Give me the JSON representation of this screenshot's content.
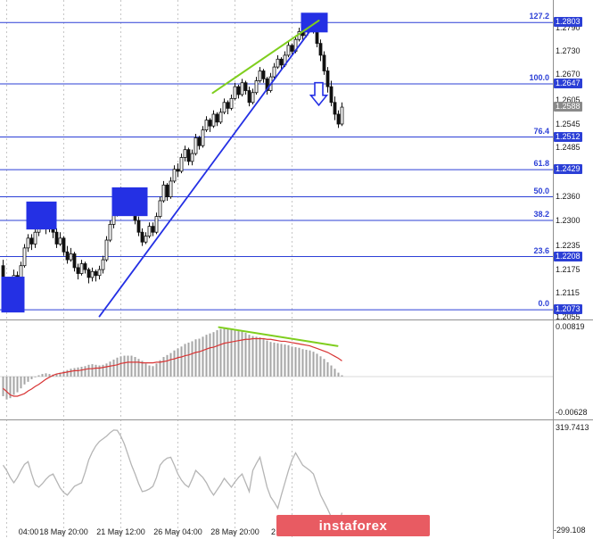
{
  "watermark": {
    "text": "instaforex",
    "bg_color": "#e85b62",
    "text_color": "#ffffff"
  },
  "colors": {
    "fib_line": "#2b3fd6",
    "fib_text": "#2b3fd6",
    "shape_blue": "#2430e4",
    "trend_green": "#7fce1e",
    "signal_red": "#d83434",
    "histogram_gray": "#a6a6a6",
    "oscillator_gray": "#b5b5b5",
    "grid_gray": "#c6c6c6",
    "separator_gray": "#909090",
    "candle_black": "#111111",
    "current_price_bg": "#8a8a8a"
  },
  "time_axis": {
    "labels": [
      {
        "text": "04:00",
        "candle": 1
      },
      {
        "text": "18 May 20:00",
        "candle": 17
      },
      {
        "text": "21 May 12:00",
        "candle": 33
      },
      {
        "text": "26 May 04:00",
        "candle": 49
      },
      {
        "text": "28 May 20:00",
        "candle": 65
      },
      {
        "text": "2 Jun 12:00",
        "candle": 81
      }
    ]
  },
  "price_axis": {
    "ticks": [
      "1.2790",
      "1.2730",
      "1.2670",
      "1.2605",
      "1.2545",
      "1.2485",
      "1.2360",
      "1.2300",
      "1.2235",
      "1.2175",
      "1.2115",
      "1.2055"
    ],
    "current_price": "1.2588"
  },
  "fibonacci": {
    "levels": [
      {
        "pct": "127.2",
        "price": "1.2803",
        "boxed": true
      },
      {
        "pct": "100.0",
        "price": "1.2647",
        "boxed": true
      },
      {
        "pct": "76.4",
        "price": "1.2512",
        "boxed": true
      },
      {
        "pct": "61.8",
        "price": "1.2429",
        "boxed": true
      },
      {
        "pct": "50.0",
        "price": "1.2360",
        "boxed": false
      },
      {
        "pct": "38.2",
        "price": "1.2300",
        "boxed": false
      },
      {
        "pct": "23.6",
        "price": "1.2208",
        "boxed": true
      },
      {
        "pct": "0.0",
        "price": "1.2073",
        "boxed": true
      }
    ]
  },
  "indicator_axes": {
    "macd_max": "0.00819",
    "macd_min": "-0.00628",
    "osc_max": "319.7413",
    "osc_min": "-299.108"
  },
  "chart_data": [
    {
      "type": "candlestick",
      "name": "price-panel",
      "current_price": 1.2588,
      "candles": [
        [
          1.2185,
          1.22,
          1.212,
          1.214
        ],
        [
          1.214,
          1.215,
          1.2075,
          1.209
        ],
        [
          1.209,
          1.2135,
          1.208,
          1.212
        ],
        [
          1.212,
          1.2175,
          1.211,
          1.216
        ],
        [
          1.216,
          1.217,
          1.213,
          1.215
        ],
        [
          1.215,
          1.2195,
          1.214,
          1.2185
        ],
        [
          1.2185,
          1.224,
          1.218,
          1.223
        ],
        [
          1.223,
          1.2265,
          1.222,
          1.2255
        ],
        [
          1.2255,
          1.2265,
          1.2225,
          1.224
        ],
        [
          1.224,
          1.228,
          1.223,
          1.227
        ],
        [
          1.227,
          1.2305,
          1.226,
          1.2295
        ],
        [
          1.2295,
          1.232,
          1.2285,
          1.2305
        ],
        [
          1.2305,
          1.231,
          1.2265,
          1.228
        ],
        [
          1.228,
          1.231,
          1.227,
          1.23
        ],
        [
          1.23,
          1.2305,
          1.2255,
          1.227
        ],
        [
          1.227,
          1.228,
          1.223,
          1.224
        ],
        [
          1.224,
          1.227,
          1.2235,
          1.2255
        ],
        [
          1.2255,
          1.226,
          1.221,
          1.222
        ],
        [
          1.222,
          1.2235,
          1.219,
          1.22
        ],
        [
          1.22,
          1.223,
          1.2195,
          1.2215
        ],
        [
          1.2215,
          1.222,
          1.217,
          1.218
        ],
        [
          1.218,
          1.219,
          1.215,
          1.2165
        ],
        [
          1.2165,
          1.22,
          1.216,
          1.219
        ],
        [
          1.219,
          1.2195,
          1.2165,
          1.2175
        ],
        [
          1.2175,
          1.218,
          1.214,
          1.2155
        ],
        [
          1.2155,
          1.218,
          1.2145,
          1.217
        ],
        [
          1.217,
          1.2175,
          1.2145,
          1.216
        ],
        [
          1.216,
          1.2185,
          1.215,
          1.2175
        ],
        [
          1.2175,
          1.221,
          1.2165,
          1.22
        ],
        [
          1.22,
          1.226,
          1.2195,
          1.225
        ],
        [
          1.225,
          1.23,
          1.2245,
          1.229
        ],
        [
          1.229,
          1.233,
          1.228,
          1.232
        ],
        [
          1.232,
          1.2355,
          1.231,
          1.2345
        ],
        [
          1.2345,
          1.2385,
          1.234,
          1.237
        ],
        [
          1.237,
          1.238,
          1.233,
          1.234
        ],
        [
          1.234,
          1.237,
          1.2335,
          1.2355
        ],
        [
          1.2355,
          1.2365,
          1.232,
          1.233
        ],
        [
          1.233,
          1.234,
          1.229,
          1.23
        ],
        [
          1.23,
          1.231,
          1.226,
          1.227
        ],
        [
          1.227,
          1.228,
          1.2235,
          1.2245
        ],
        [
          1.2245,
          1.227,
          1.224,
          1.226
        ],
        [
          1.226,
          1.2295,
          1.2255,
          1.2285
        ],
        [
          1.2285,
          1.2295,
          1.226,
          1.227
        ],
        [
          1.227,
          1.232,
          1.2265,
          1.231
        ],
        [
          1.231,
          1.236,
          1.2305,
          1.235
        ],
        [
          1.235,
          1.24,
          1.2345,
          1.239
        ],
        [
          1.239,
          1.2395,
          1.235,
          1.236
        ],
        [
          1.236,
          1.241,
          1.2355,
          1.24
        ],
        [
          1.24,
          1.244,
          1.2395,
          1.243
        ],
        [
          1.243,
          1.2445,
          1.241,
          1.2425
        ],
        [
          1.2425,
          1.247,
          1.242,
          1.246
        ],
        [
          1.246,
          1.249,
          1.245,
          1.248
        ],
        [
          1.248,
          1.2485,
          1.244,
          1.245
        ],
        [
          1.245,
          1.248,
          1.244,
          1.247
        ],
        [
          1.247,
          1.252,
          1.2465,
          1.251
        ],
        [
          1.251,
          1.2515,
          1.248,
          1.249
        ],
        [
          1.249,
          1.254,
          1.2485,
          1.253
        ],
        [
          1.253,
          1.2565,
          1.2525,
          1.2555
        ],
        [
          1.2555,
          1.256,
          1.2525,
          1.254
        ],
        [
          1.254,
          1.258,
          1.2535,
          1.257
        ],
        [
          1.257,
          1.2575,
          1.254,
          1.255
        ],
        [
          1.255,
          1.2585,
          1.2545,
          1.2575
        ],
        [
          1.2575,
          1.261,
          1.257,
          1.26
        ],
        [
          1.26,
          1.2605,
          1.257,
          1.2585
        ],
        [
          1.2585,
          1.262,
          1.258,
          1.261
        ],
        [
          1.261,
          1.265,
          1.2605,
          1.264
        ],
        [
          1.264,
          1.2645,
          1.261,
          1.262
        ],
        [
          1.262,
          1.266,
          1.2615,
          1.265
        ],
        [
          1.265,
          1.2655,
          1.262,
          1.263
        ],
        [
          1.263,
          1.264,
          1.259,
          1.26
        ],
        [
          1.26,
          1.2635,
          1.2595,
          1.2625
        ],
        [
          1.2625,
          1.2665,
          1.262,
          1.2655
        ],
        [
          1.2655,
          1.269,
          1.265,
          1.268
        ],
        [
          1.268,
          1.2685,
          1.265,
          1.266
        ],
        [
          1.266,
          1.2665,
          1.262,
          1.263
        ],
        [
          1.263,
          1.2675,
          1.2625,
          1.2665
        ],
        [
          1.2665,
          1.27,
          1.266,
          1.269
        ],
        [
          1.269,
          1.272,
          1.2685,
          1.271
        ],
        [
          1.271,
          1.2715,
          1.2685,
          1.2695
        ],
        [
          1.2695,
          1.273,
          1.269,
          1.272
        ],
        [
          1.272,
          1.2755,
          1.2715,
          1.2745
        ],
        [
          1.2745,
          1.275,
          1.272,
          1.273
        ],
        [
          1.273,
          1.277,
          1.2725,
          1.276
        ],
        [
          1.276,
          1.279,
          1.2755,
          1.278
        ],
        [
          1.278,
          1.2785,
          1.2755,
          1.277
        ],
        [
          1.277,
          1.2805,
          1.2765,
          1.2795
        ],
        [
          1.2795,
          1.2815,
          1.279,
          1.2805
        ],
        [
          1.2805,
          1.281,
          1.2775,
          1.279
        ],
        [
          1.279,
          1.2795,
          1.274,
          1.275
        ],
        [
          1.275,
          1.276,
          1.2705,
          1.272
        ],
        [
          1.272,
          1.273,
          1.267,
          1.268
        ],
        [
          1.268,
          1.269,
          1.2625,
          1.264
        ],
        [
          1.264,
          1.2655,
          1.259,
          1.26
        ],
        [
          1.26,
          1.2615,
          1.2555,
          1.257
        ],
        [
          1.257,
          1.258,
          1.2535,
          1.2545
        ],
        [
          1.2545,
          1.26,
          1.254,
          1.2588
        ]
      ],
      "trend_lines": [
        {
          "from": [
            27,
            1.2056
          ],
          "to": [
            88.5,
            1.2812
          ],
          "color_key": "shape_blue",
          "width": 1.8
        },
        {
          "from": [
            58.75,
            1.2624
          ],
          "to": [
            88.5,
            1.2808
          ],
          "color_key": "trend_green",
          "width": 2
        }
      ],
      "rectangles": [
        {
          "c1": 0,
          "c2": 5.5,
          "p_low": 1.2066,
          "p_high": 1.2157
        },
        {
          "c1": 7,
          "c2": 14.5,
          "p_low": 1.2277,
          "p_high": 1.2348
        },
        {
          "c1": 31,
          "c2": 40,
          "p_low": 1.2311,
          "p_high": 1.2384
        },
        {
          "c1": 84,
          "c2": 90.5,
          "p_low": 1.2778,
          "p_high": 1.2828
        }
      ],
      "arrow": {
        "candle": 88.5,
        "price_top": 1.265,
        "price_bottom": 1.2593,
        "direction": "down"
      }
    },
    {
      "type": "bar",
      "name": "macd-histogram",
      "y_max": 0.00819,
      "y_min": -0.00628,
      "values": [
        -0.003,
        -0.0035,
        -0.0033,
        -0.0028,
        -0.0024,
        -0.0018,
        -0.0012,
        -0.0008,
        -0.0004,
        -0.0001,
        0.0002,
        0.0004,
        0.0005,
        0.0004,
        0.0003,
        0.0004,
        0.0006,
        0.0008,
        0.001,
        0.0012,
        0.0013,
        0.0014,
        0.0015,
        0.0016,
        0.0018,
        0.0019,
        0.0018,
        0.0017,
        0.0018,
        0.002,
        0.0023,
        0.0026,
        0.0029,
        0.0031,
        0.0032,
        0.0032,
        0.0032,
        0.003,
        0.0027,
        0.0024,
        0.002,
        0.0017,
        0.0016,
        0.002,
        0.0025,
        0.003,
        0.0033,
        0.0036,
        0.004,
        0.0043,
        0.0046,
        0.005,
        0.0052,
        0.0054,
        0.0057,
        0.0058,
        0.0061,
        0.0064,
        0.0066,
        0.0068,
        0.0071,
        0.0073,
        0.0075,
        0.0074,
        0.0073,
        0.0072,
        0.007,
        0.0069,
        0.0067,
        0.0064,
        0.0062,
        0.0061,
        0.006,
        0.0058,
        0.0055,
        0.0053,
        0.0052,
        0.0051,
        0.005,
        0.0049,
        0.0048,
        0.0046,
        0.0045,
        0.0044,
        0.0042,
        0.0041,
        0.004,
        0.0038,
        0.0035,
        0.0031,
        0.0027,
        0.0022,
        0.0017,
        0.0012,
        0.0006,
        0.0002
      ],
      "signal": [
        -0.0018,
        -0.0023,
        -0.0028,
        -0.003,
        -0.003,
        -0.0028,
        -0.0026,
        -0.0022,
        -0.0019,
        -0.0015,
        -0.0012,
        -0.0008,
        -0.0004,
        -0.0001,
        0.0002,
        0.0004,
        0.0005,
        0.0006,
        0.0007,
        0.0008,
        0.0009,
        0.0009,
        0.001,
        0.0011,
        0.0012,
        0.0012,
        0.0013,
        0.0013,
        0.0014,
        0.0015,
        0.0016,
        0.0017,
        0.0018,
        0.002,
        0.0021,
        0.0022,
        0.0022,
        0.0022,
        0.0022,
        0.0021,
        0.0021,
        0.0021,
        0.0021,
        0.0022,
        0.0022,
        0.0023,
        0.0024,
        0.0026,
        0.0027,
        0.0029,
        0.003,
        0.0032,
        0.0033,
        0.0035,
        0.0037,
        0.0038,
        0.004,
        0.0042,
        0.0044,
        0.0045,
        0.0047,
        0.0049,
        0.0051,
        0.0052,
        0.0053,
        0.0054,
        0.0055,
        0.0056,
        0.0057,
        0.0057,
        0.0058,
        0.0058,
        0.0058,
        0.0058,
        0.0057,
        0.0057,
        0.0056,
        0.0055,
        0.0054,
        0.0054,
        0.0053,
        0.0052,
        0.0051,
        0.005,
        0.0049,
        0.0048,
        0.0047,
        0.0045,
        0.0043,
        0.0041,
        0.0039,
        0.0037,
        0.0034,
        0.0031,
        0.0028,
        0.0024
      ],
      "divergence_line": [
        [
          60.5,
          0.00755
        ],
        [
          93.75,
          0.00468
        ]
      ]
    },
    {
      "type": "line",
      "name": "oscillator",
      "y_max": 319.7413,
      "y_min": -299.108,
      "values": [
        90,
        60,
        20,
        -10,
        20,
        60,
        95,
        110,
        40,
        -20,
        -35,
        -15,
        10,
        30,
        40,
        0,
        -40,
        -65,
        -80,
        -55,
        -30,
        -20,
        -10,
        50,
        120,
        165,
        200,
        225,
        240,
        255,
        275,
        290,
        288,
        255,
        210,
        150,
        90,
        40,
        -15,
        -60,
        -55,
        -45,
        -30,
        20,
        90,
        115,
        130,
        135,
        90,
        40,
        5,
        -20,
        -35,
        10,
        60,
        40,
        20,
        -10,
        -50,
        -80,
        -50,
        -20,
        15,
        -10,
        -35,
        -5,
        20,
        40,
        -10,
        -60,
        60,
        100,
        135,
        50,
        -35,
        -90,
        -120,
        -155,
        -80,
        -10,
        60,
        120,
        160,
        125,
        90,
        75,
        60,
        40,
        -20,
        -80,
        -120,
        -160,
        -205,
        -230,
        -250,
        -180
      ]
    }
  ]
}
